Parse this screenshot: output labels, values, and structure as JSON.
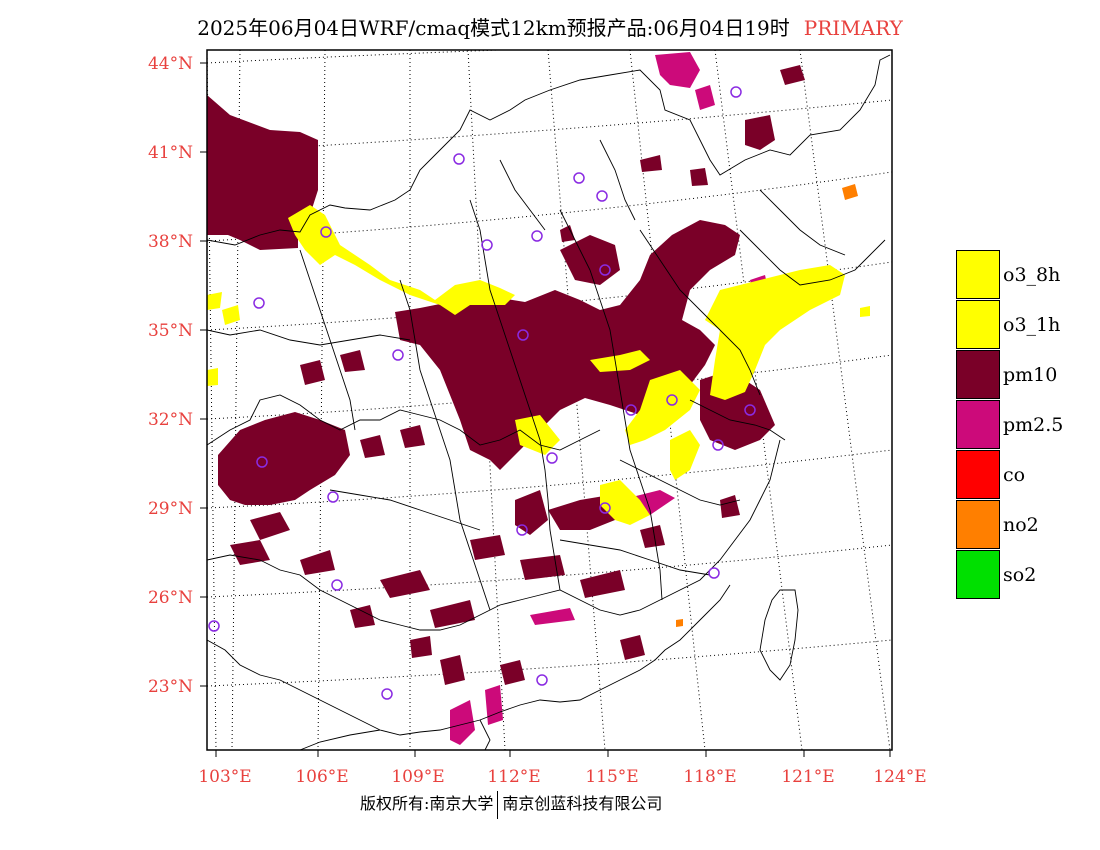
{
  "title": {
    "main": "2025年06月04日WRF/cmaq模式12km预报产品:06月04日19时",
    "tag": "PRIMARY"
  },
  "axes": {
    "lat_labels": [
      "44°N",
      "41°N",
      "38°N",
      "35°N",
      "32°N",
      "29°N",
      "26°N",
      "23°N"
    ],
    "lon_labels": [
      "103°E",
      "106°E",
      "109°E",
      "112°E",
      "115°E",
      "118°E",
      "121°E",
      "124°E"
    ]
  },
  "legend": [
    {
      "label": "o3_8h",
      "color": "#ffff00"
    },
    {
      "label": "o3_1h",
      "color": "#ffff00"
    },
    {
      "label": "pm10",
      "color": "#7a0028"
    },
    {
      "label": "pm2.5",
      "color": "#cc0a7a"
    },
    {
      "label": "co",
      "color": "#ff0000"
    },
    {
      "label": "no2",
      "color": "#ff7f00"
    },
    {
      "label": "so2",
      "color": "#00e000"
    }
  ],
  "colors": {
    "label_red": "#e8413e",
    "pm10": "#7a0028",
    "pm25": "#cc0a7a",
    "o3": "#ffff00",
    "no2": "#ff7f00",
    "site_marker": "#8a2be2"
  },
  "footer": {
    "left": "版权所有:南京大学",
    "right": "南京创蓝科技有限公司"
  }
}
